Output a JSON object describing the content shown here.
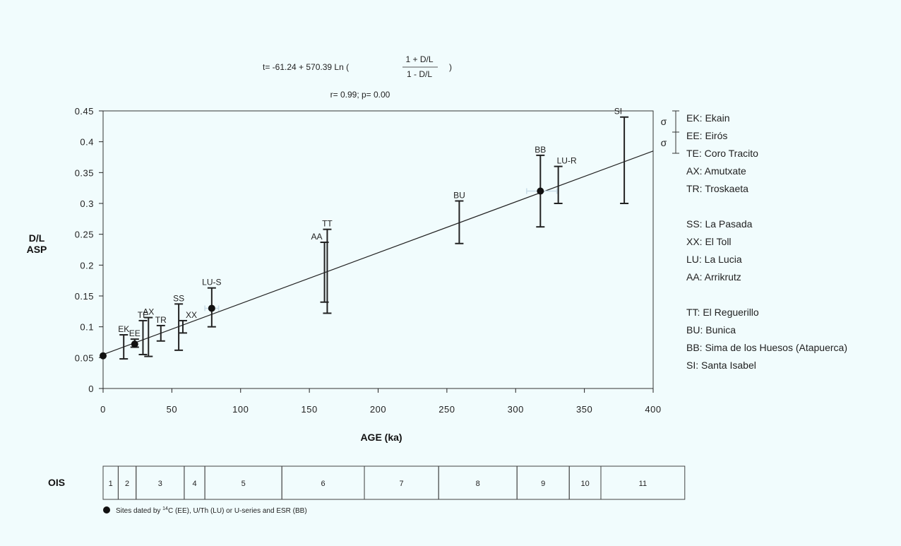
{
  "colors": {
    "background": "#f1fcfd",
    "ink": "#222222",
    "halo": "#c9dde8"
  },
  "formula": {
    "left": "t= -61.24 + 570.39 Ln (",
    "numerator": "1 + D/L",
    "denominator": "1 - D/L",
    "right": ")",
    "stats": "r= 0.99; p= 0.00"
  },
  "chart_data": {
    "type": "scatter",
    "xlabel": "AGE (ka)",
    "ylabel_line1": "D/L",
    "ylabel_line2": "ASP",
    "xlim": [
      0,
      400
    ],
    "ylim": [
      0,
      0.45
    ],
    "xticks": [
      0,
      50,
      100,
      150,
      200,
      250,
      300,
      350,
      400
    ],
    "yticks": [
      0,
      0.05,
      0.1,
      0.15,
      0.2,
      0.25,
      0.3,
      0.35,
      0.4,
      0.45
    ],
    "ytick_labels": [
      "0",
      "0.05",
      "0.1",
      "0.15",
      "0.2",
      "0.25",
      "0.3",
      "0.35",
      "0.4",
      "0.45"
    ],
    "grid": false,
    "regression": {
      "x": [
        0,
        400
      ],
      "y": [
        0.055,
        0.385
      ]
    },
    "error_bars": [
      {
        "label": "EK",
        "x": 15,
        "y_low": 0.048,
        "y_high": 0.087
      },
      {
        "label": "EE",
        "x": 23,
        "y_low": 0.067,
        "y_high": 0.08
      },
      {
        "label": "TE",
        "x": 29,
        "y_low": 0.055,
        "y_high": 0.11
      },
      {
        "label": "AX",
        "x": 33,
        "y_low": 0.052,
        "y_high": 0.115
      },
      {
        "label": "TR",
        "x": 42,
        "y_low": 0.077,
        "y_high": 0.102
      },
      {
        "label": "SS",
        "x": 55,
        "y_low": 0.062,
        "y_high": 0.137
      },
      {
        "label": "XX",
        "x": 58,
        "y_low": 0.09,
        "y_high": 0.11
      },
      {
        "label": "LU-S",
        "x": 79,
        "y_low": 0.1,
        "y_high": 0.163
      },
      {
        "label": "AA",
        "x": 161,
        "y_low": 0.14,
        "y_high": 0.237
      },
      {
        "label": "TT",
        "x": 163,
        "y_low": 0.122,
        "y_high": 0.258
      },
      {
        "label": "BU",
        "x": 259,
        "y_low": 0.235,
        "y_high": 0.304
      },
      {
        "label": "BB",
        "x": 318,
        "y_low": 0.262,
        "y_high": 0.378
      },
      {
        "label": "LU-R",
        "x": 331,
        "y_low": 0.3,
        "y_high": 0.36
      },
      {
        "label": "SI",
        "x": 379,
        "y_low": 0.3,
        "y_high": 0.44
      }
    ],
    "dated_points": [
      {
        "x": 0,
        "y": 0.053
      },
      {
        "x": 23,
        "y": 0.072
      },
      {
        "x": 79,
        "y": 0.13
      },
      {
        "x": 318,
        "y": 0.32
      }
    ],
    "age_error_bars": [
      {
        "x_low": 74,
        "x_high": 84,
        "y": 0.13
      },
      {
        "x_low": 308,
        "x_high": 330,
        "y": 0.32
      }
    ]
  },
  "sigma_symbol": "σ",
  "legend": {
    "groups": [
      [
        "EK: Ekain",
        "EE: Eirós",
        "TE: Coro Tracito",
        "AX: Amutxate",
        "TR: Troskaeta"
      ],
      [
        "SS: La Pasada",
        "XX: El Toll",
        "LU: La Lucia",
        "AA: Arrikrutz"
      ],
      [
        "TT: El Reguerillo",
        "BU: Bunica",
        "BB: Sima de los Huesos (Atapuerca)",
        "SI: Santa Isabel"
      ]
    ]
  },
  "ois": {
    "label": "OIS",
    "stages": [
      {
        "label": "1",
        "start": 0,
        "end": 11
      },
      {
        "label": "2",
        "start": 11,
        "end": 24
      },
      {
        "label": "3",
        "start": 24,
        "end": 59
      },
      {
        "label": "4",
        "start": 59,
        "end": 74
      },
      {
        "label": "5",
        "start": 74,
        "end": 130
      },
      {
        "label": "6",
        "start": 130,
        "end": 190
      },
      {
        "label": "7",
        "start": 190,
        "end": 244
      },
      {
        "label": "8",
        "start": 244,
        "end": 301
      },
      {
        "label": "9",
        "start": 301,
        "end": 339
      },
      {
        "label": "10",
        "start": 339,
        "end": 362
      },
      {
        "label": "11",
        "start": 362,
        "end": 423
      }
    ]
  },
  "footnote": {
    "pre": "Sites dated by ",
    "sup": "14",
    "post": "C (EE), U/Th (LU) or U-series and ESR (BB)"
  }
}
